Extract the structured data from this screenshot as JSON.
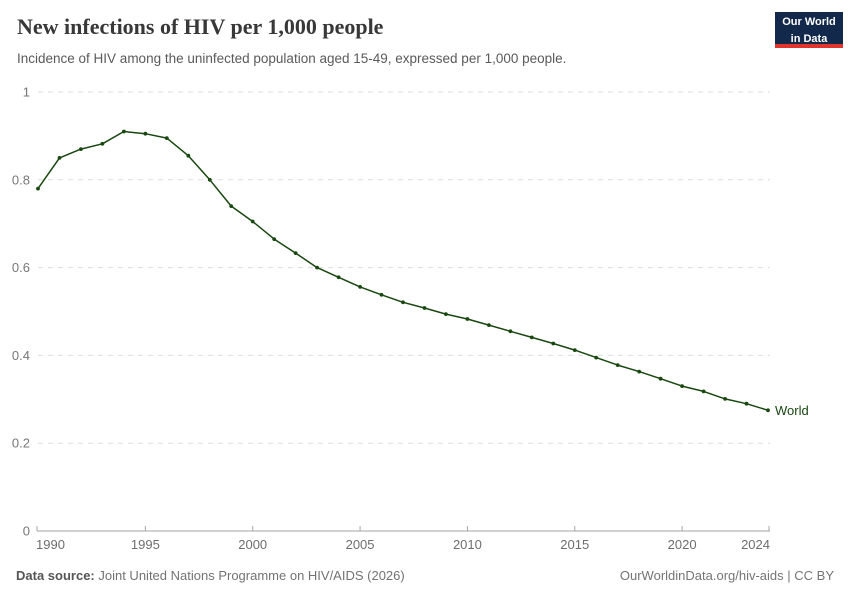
{
  "header": {
    "title": "New infections of HIV per 1,000 people",
    "subtitle": "Incidence of HIV among the uninfected population aged 15-49, expressed per 1,000 people."
  },
  "logo": {
    "line1": "Our World",
    "line2": "in Data",
    "bg_color": "#12294b",
    "accent_color": "#de352c"
  },
  "chart_data": {
    "type": "line",
    "title": "New infections of HIV per 1,000 people",
    "xlabel": "",
    "ylabel": "",
    "xlim": [
      1990,
      2024
    ],
    "ylim": [
      0,
      1
    ],
    "xticks": [
      1990,
      1995,
      2000,
      2005,
      2010,
      2015,
      2020,
      2024
    ],
    "yticks": [
      0,
      0.2,
      0.4,
      0.6,
      0.8,
      1
    ],
    "ytick_labels": [
      "0",
      "0.2",
      "0.4",
      "0.6",
      "0.8",
      "1"
    ],
    "grid": "horizontal-dashed",
    "legend_position": "end-of-line",
    "x": [
      1990,
      1991,
      1992,
      1993,
      1994,
      1995,
      1996,
      1997,
      1998,
      1999,
      2000,
      2001,
      2002,
      2003,
      2004,
      2005,
      2006,
      2007,
      2008,
      2009,
      2010,
      2011,
      2012,
      2013,
      2014,
      2015,
      2016,
      2017,
      2018,
      2019,
      2020,
      2021,
      2022,
      2023,
      2024
    ],
    "series": [
      {
        "name": "World",
        "color": "#18470f",
        "values": [
          0.78,
          0.85,
          0.87,
          0.882,
          0.91,
          0.905,
          0.895,
          0.855,
          0.8,
          0.74,
          0.705,
          0.665,
          0.633,
          0.6,
          0.578,
          0.556,
          0.538,
          0.521,
          0.508,
          0.494,
          0.483,
          0.469,
          0.455,
          0.441,
          0.427,
          0.412,
          0.395,
          0.378,
          0.363,
          0.347,
          0.33,
          0.318,
          0.301,
          0.29,
          0.275
        ]
      }
    ]
  },
  "footer": {
    "source_label": "Data source:",
    "source_text": " Joint United Nations Programme on HIV/AIDS (2026)",
    "attribution": "OurWorldinData.org/hiv-aids | CC BY"
  },
  "colors": {
    "line": "#18470f",
    "grid": "#dddddd",
    "axis": "#a5a5a5",
    "tick_label": "#6e6e6e",
    "title": "#383838",
    "subtitle": "#5a5a5a",
    "footer": "#737373"
  }
}
